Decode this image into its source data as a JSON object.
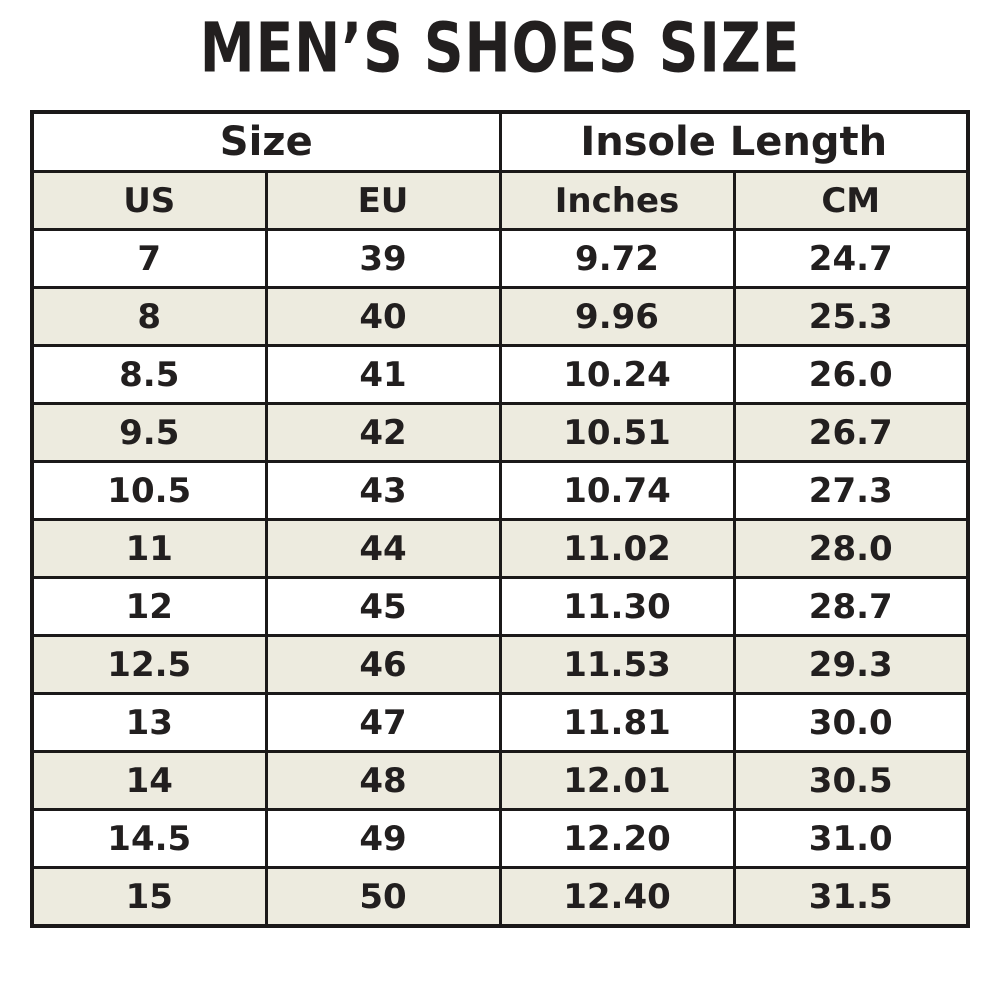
{
  "title": "MEN’S SHOES SIZE",
  "colors": {
    "background": "#ffffff",
    "stripe_beige": "#edebdf",
    "border_black": "#1b1919",
    "text_black": "#221f1f"
  },
  "chart_data": {
    "type": "table",
    "title": "MEN’S SHOES SIZE",
    "column_groups": [
      {
        "label": "Size",
        "span": 2
      },
      {
        "label": "Insole Length",
        "span": 2
      }
    ],
    "columns": [
      "US",
      "EU",
      "Inches",
      "CM"
    ],
    "rows": [
      [
        "7",
        "39",
        "9.72",
        "24.7"
      ],
      [
        "8",
        "40",
        "9.96",
        "25.3"
      ],
      [
        "8.5",
        "41",
        "10.24",
        "26.0"
      ],
      [
        "9.5",
        "42",
        "10.51",
        "26.7"
      ],
      [
        "10.5",
        "43",
        "10.74",
        "27.3"
      ],
      [
        "11",
        "44",
        "11.02",
        "28.0"
      ],
      [
        "12",
        "45",
        "11.30",
        "28.7"
      ],
      [
        "12.5",
        "46",
        "11.53",
        "29.3"
      ],
      [
        "13",
        "47",
        "11.81",
        "30.0"
      ],
      [
        "14",
        "48",
        "12.01",
        "30.5"
      ],
      [
        "14.5",
        "49",
        "12.20",
        "31.0"
      ],
      [
        "15",
        "50",
        "12.40",
        "31.5"
      ]
    ],
    "layout": {
      "stripe_pattern": "alternating rows, beige on even data rows (2nd, 4th, ...) and header row",
      "grid": true
    }
  }
}
